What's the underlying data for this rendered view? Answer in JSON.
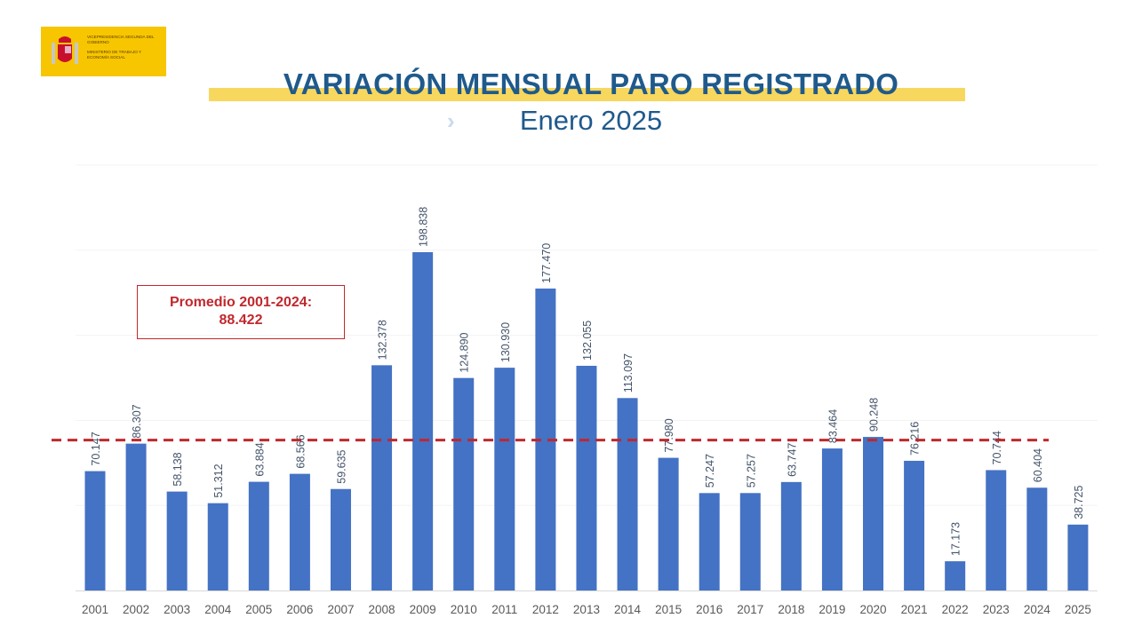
{
  "logo": {
    "line1": "VICEPRESIDENCIA SEGUNDA DEL GOBIERNO",
    "line2": "MINISTERIO DE TRABAJO Y ECONOMÍA SOCIAL"
  },
  "colors": {
    "bar": "#4472c4",
    "average_line": "#c0282d",
    "title": "#1f5a8c",
    "band": "#f8d75e"
  },
  "chart_data": {
    "type": "bar",
    "title": "VARIACIÓN MENSUAL PARO REGISTRADO",
    "subtitle": "Enero 2025",
    "categories": [
      "2001",
      "2002",
      "2003",
      "2004",
      "2005",
      "2006",
      "2007",
      "2008",
      "2009",
      "2010",
      "2011",
      "2012",
      "2013",
      "2014",
      "2015",
      "2016",
      "2017",
      "2018",
      "2019",
      "2020",
      "2021",
      "2022",
      "2023",
      "2024",
      "2025"
    ],
    "values": [
      70147,
      86307,
      58138,
      51312,
      63884,
      68566,
      59635,
      132378,
      198838,
      124890,
      130930,
      177470,
      132055,
      113097,
      77980,
      57247,
      57257,
      63747,
      83464,
      90248,
      76216,
      17173,
      70744,
      60404,
      38725
    ],
    "labels": [
      "70.147",
      "86.307",
      "58.138",
      "51.312",
      "63.884",
      "68.566",
      "59.635",
      "132.378",
      "198.838",
      "124.890",
      "130.930",
      "177.470",
      "132.055",
      "113.097",
      "77.980",
      "57.247",
      "57.257",
      "63.747",
      "83.464",
      "90.248",
      "76.216",
      "17.173",
      "70.744",
      "60.404",
      "38.725"
    ],
    "ylim": [
      0,
      250000
    ],
    "grid": true,
    "average": {
      "value": 88422,
      "label_line1": "Promedio 2001-2024:",
      "label_line2": "88.422"
    }
  }
}
